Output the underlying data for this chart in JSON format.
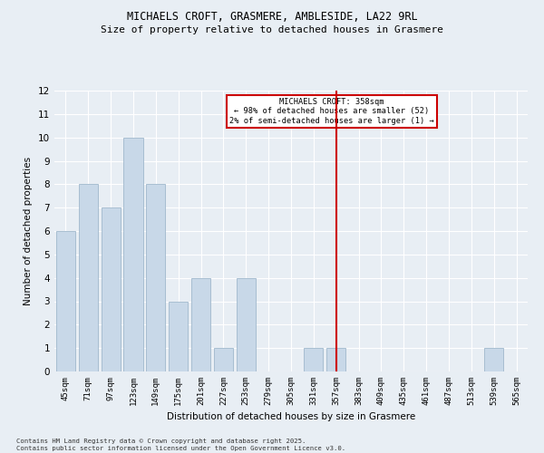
{
  "title_line1": "MICHAELS CROFT, GRASMERE, AMBLESIDE, LA22 9RL",
  "title_line2": "Size of property relative to detached houses in Grasmere",
  "xlabel": "Distribution of detached houses by size in Grasmere",
  "ylabel": "Number of detached properties",
  "categories": [
    "45sqm",
    "71sqm",
    "97sqm",
    "123sqm",
    "149sqm",
    "175sqm",
    "201sqm",
    "227sqm",
    "253sqm",
    "279sqm",
    "305sqm",
    "331sqm",
    "357sqm",
    "383sqm",
    "409sqm",
    "435sqm",
    "461sqm",
    "487sqm",
    "513sqm",
    "539sqm",
    "565sqm"
  ],
  "values": [
    6,
    8,
    7,
    10,
    8,
    3,
    4,
    1,
    4,
    0,
    0,
    1,
    1,
    0,
    0,
    0,
    0,
    0,
    0,
    1,
    0
  ],
  "bar_color": "#c8d8e8",
  "bar_edge_color": "#a0b8cc",
  "vline_index": 12,
  "vline_color": "#cc0000",
  "annotation_title": "MICHAELS CROFT: 358sqm",
  "annotation_line1": "← 98% of detached houses are smaller (52)",
  "annotation_line2": "2% of semi-detached houses are larger (1) →",
  "annotation_box_color": "#cc0000",
  "ylim": [
    0,
    12
  ],
  "yticks": [
    0,
    1,
    2,
    3,
    4,
    5,
    6,
    7,
    8,
    9,
    10,
    11,
    12
  ],
  "footnote1": "Contains HM Land Registry data © Crown copyright and database right 2025.",
  "footnote2": "Contains public sector information licensed under the Open Government Licence v3.0.",
  "bg_color": "#e8eef4",
  "plot_bg_color": "#e8eef4"
}
